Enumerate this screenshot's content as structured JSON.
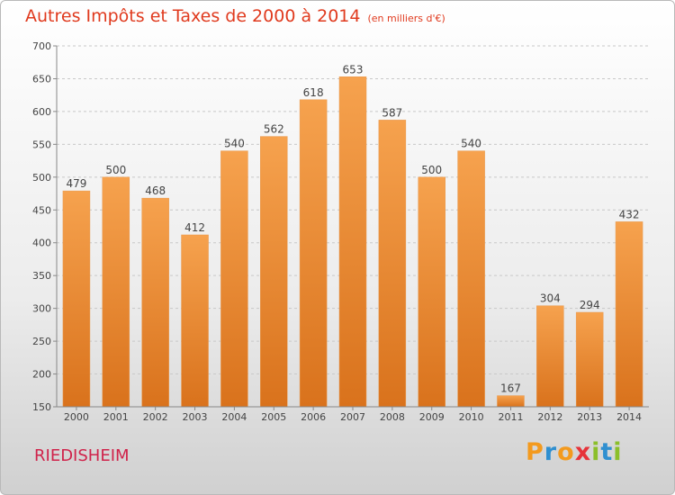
{
  "title": "Autres Impôts et Taxes de 2000 à 2014",
  "unit": "(en milliers d'€)",
  "city": "RIEDISHEIM",
  "logo": "Proxiti",
  "colors": {
    "bar_top": "#f6a24e",
    "bar_bottom": "#d9721c",
    "title": "#e03a1e",
    "city": "#d0224a"
  },
  "chart_data": {
    "type": "bar",
    "title": "Autres Impôts et Taxes de 2000 à 2014",
    "subtitle": "(en milliers d'€)",
    "categories": [
      "2000",
      "2001",
      "2002",
      "2003",
      "2004",
      "2005",
      "2006",
      "2007",
      "2008",
      "2009",
      "2010",
      "2011",
      "2012",
      "2013",
      "2014"
    ],
    "values": [
      479,
      500,
      468,
      412,
      540,
      562,
      618,
      653,
      587,
      500,
      540,
      167,
      304,
      294,
      432
    ],
    "ylim": [
      150,
      700
    ],
    "yticks": [
      150,
      200,
      250,
      300,
      350,
      400,
      450,
      500,
      550,
      600,
      650,
      700
    ],
    "grid": true,
    "data_labels": true
  }
}
